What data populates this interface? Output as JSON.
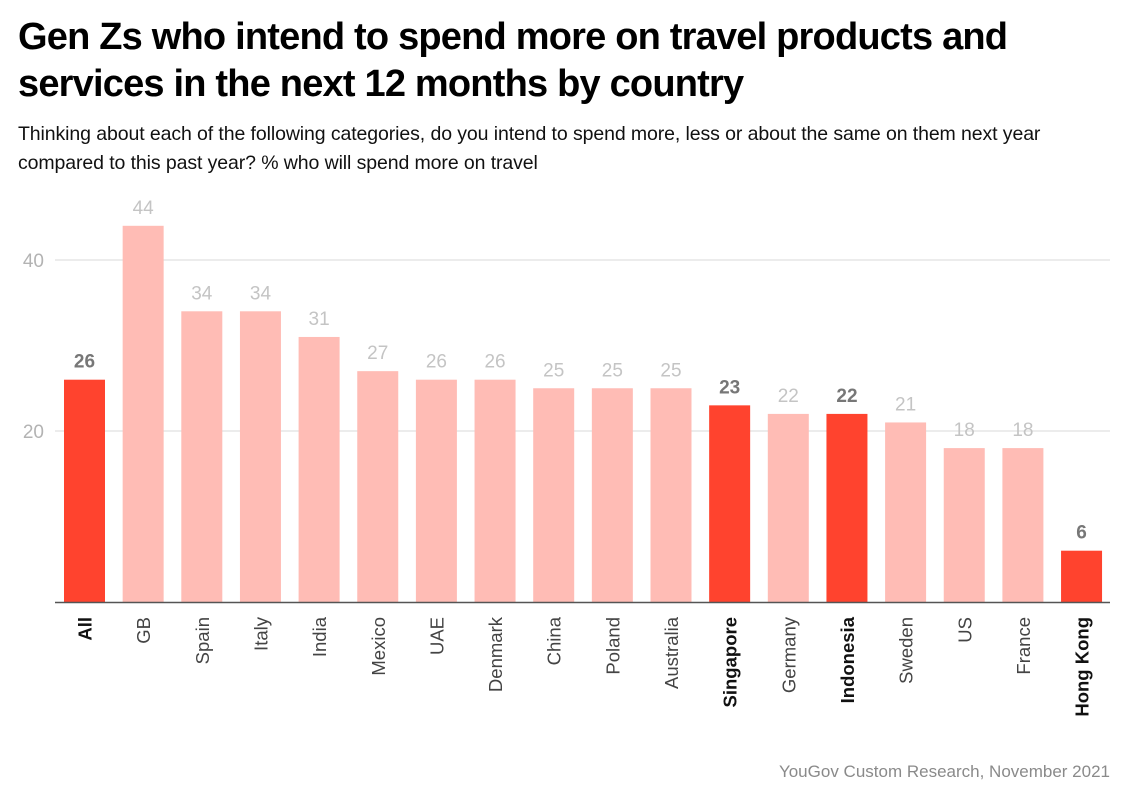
{
  "header": {
    "title": "Gen Zs who intend to spend more on travel products and services in the next 12 months by country",
    "subtitle": "Thinking about each of the following categories, do you intend to spend more, less or about the same on them next year compared to this past year? % who will spend more on travel"
  },
  "footer": {
    "source": "YouGov Custom Research, November 2021"
  },
  "colors": {
    "highlight": "#ff432e",
    "normal": "#ffbcb5",
    "grid": "#e6e6e6",
    "axis": "#555555",
    "tick_label": "#b3b3b3",
    "value_label_normal": "#c4c4c4",
    "value_label_highlight": "#777777",
    "category_label": "#444444"
  },
  "chart_data": {
    "type": "bar",
    "title": "Gen Zs who intend to spend more on travel products and services in the next 12 months by country",
    "xlabel": "",
    "ylabel": "% who will spend more on travel",
    "ylim": [
      0,
      46
    ],
    "yticks": [
      20,
      40
    ],
    "grid": true,
    "legend": "none",
    "categories": [
      "All",
      "GB",
      "Spain",
      "Italy",
      "India",
      "Mexico",
      "UAE",
      "Denmark",
      "China",
      "Poland",
      "Australia",
      "Singapore",
      "Germany",
      "Indonesia",
      "Sweden",
      "US",
      "France",
      "Hong Kong"
    ],
    "values": [
      26,
      44,
      34,
      34,
      31,
      27,
      26,
      26,
      25,
      25,
      25,
      23,
      22,
      22,
      21,
      18,
      18,
      6
    ],
    "highlighted": [
      "All",
      "Singapore",
      "Indonesia",
      "Hong Kong"
    ]
  }
}
